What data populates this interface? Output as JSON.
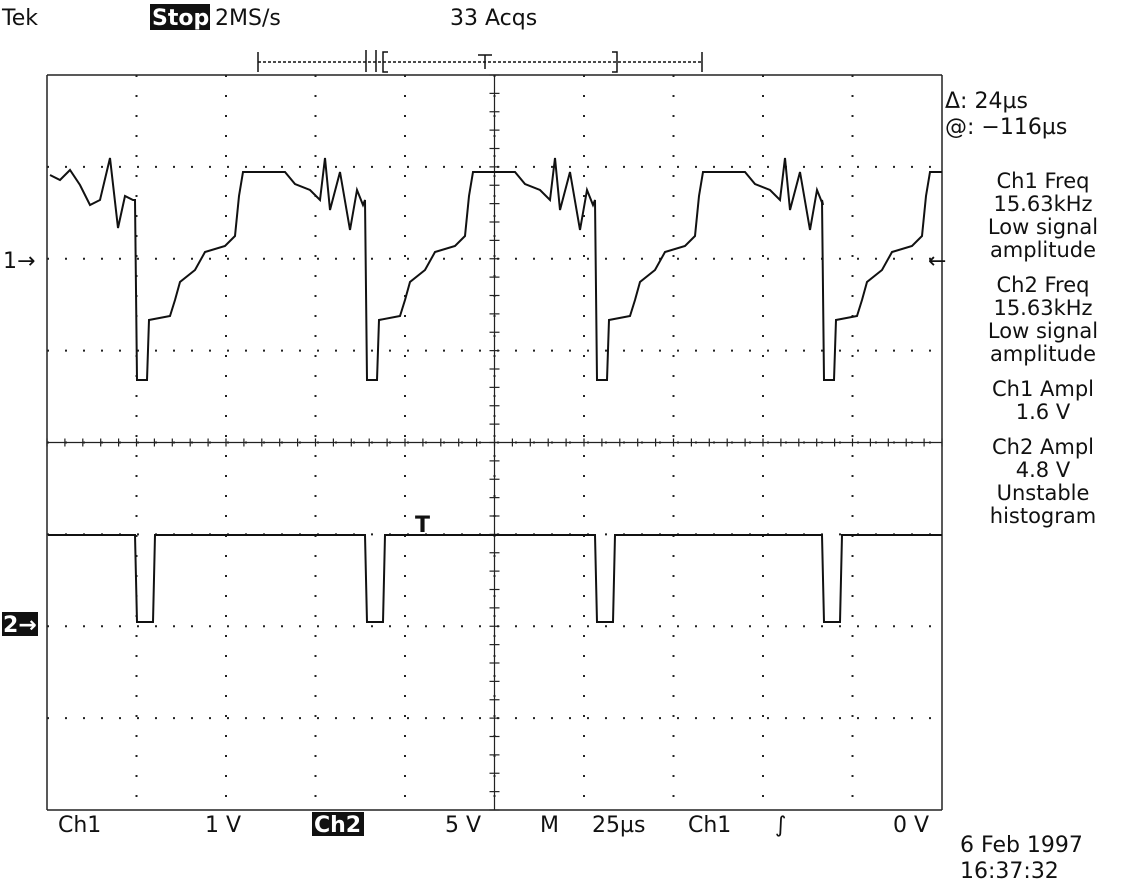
{
  "header": {
    "brand": "Tek",
    "status": "Stop:",
    "sample_rate": "2MS/s",
    "acquisitions": "33 Acqs"
  },
  "cursor_readout": {
    "delta": "Δ: 24µs",
    "position": "@: −116µs"
  },
  "measurements": [
    {
      "label": "Ch1 Freq",
      "lines": [
        "15.63kHz",
        "Low signal",
        "amplitude"
      ]
    },
    {
      "label": "Ch2 Freq",
      "lines": [
        "15.63kHz",
        "Low signal",
        "amplitude"
      ]
    },
    {
      "label": "Ch1 Ampl",
      "lines": [
        "1.6 V"
      ]
    },
    {
      "label": "Ch2 Ampl",
      "lines": [
        "4.8 V",
        "Unstable",
        "histogram"
      ]
    }
  ],
  "channel_markers": {
    "ch1": "1→",
    "ch2": "2→"
  },
  "footer": {
    "ch1": "Ch1",
    "ch1_scale": "1 V",
    "ch2": "Ch2",
    "ch2_scale": "5 V",
    "timebase_label": "M",
    "timebase": "25µs",
    "trigger_source": "Ch1",
    "trigger_slope": "∫",
    "trigger_level": "0 V"
  },
  "timestamp": {
    "date": "6 Feb 1997",
    "time": "16:37:32"
  }
}
